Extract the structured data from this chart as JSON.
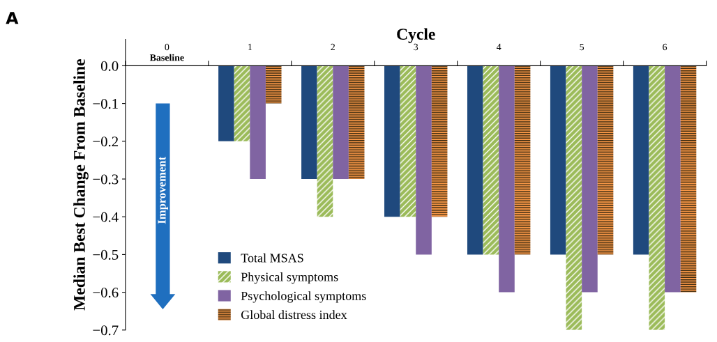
{
  "chart_data": {
    "type": "bar",
    "xlabel": "Cycle",
    "ylabel": "Median Best Change From Baseline",
    "categories": [
      "0",
      "1",
      "2",
      "3",
      "4",
      "5",
      "6"
    ],
    "series": [
      {
        "name": "Total MSAS",
        "color": "#1f497d",
        "values": [
          null,
          -0.2,
          -0.3,
          -0.4,
          -0.5,
          -0.5,
          -0.5
        ]
      },
      {
        "name": "Physical symptoms",
        "color": "#9bbb59",
        "values": [
          null,
          -0.2,
          -0.4,
          -0.4,
          -0.5,
          -0.7,
          -0.7
        ]
      },
      {
        "name": "Psychological symptoms",
        "color": "#8064a2",
        "values": [
          null,
          -0.3,
          -0.3,
          -0.5,
          -0.6,
          -0.6,
          -0.6
        ]
      },
      {
        "name": "Global distress index",
        "color": "#f79646",
        "values": [
          null,
          -0.1,
          -0.3,
          -0.4,
          -0.5,
          -0.5,
          -0.6
        ]
      }
    ],
    "ylim": [
      -0.7,
      0.07
    ],
    "yticks": [
      {
        "value": -0.7,
        "label": "−0.7"
      },
      {
        "value": -0.6,
        "label": "−0.6"
      },
      {
        "value": -0.5,
        "label": "−0.5"
      },
      {
        "value": -0.4,
        "label": "−0.4"
      },
      {
        "value": -0.3,
        "label": "−0.3"
      },
      {
        "value": -0.2,
        "label": "−0.2"
      },
      {
        "value": -0.1,
        "label": "−0.1"
      },
      {
        "value": 0,
        "label": "0.0"
      }
    ],
    "annotations": [
      "A",
      "Baseline",
      "Improvement"
    ],
    "grid": false,
    "legend": "bottom left"
  }
}
